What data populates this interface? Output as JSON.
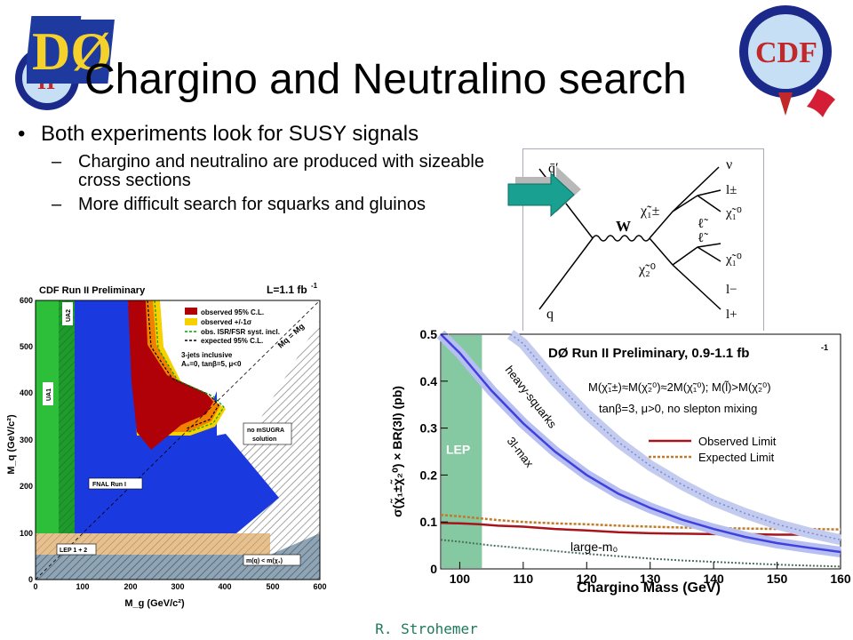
{
  "slide": {
    "title": "Chargino and Neutralino search",
    "bullets": {
      "main": "Both experiments look for SUSY signals",
      "sub1": "Chargino and neutralino are produced with sizeable cross sections",
      "sub2": "More difficult search for squarks and gluinos"
    },
    "footer": "R. Strohemer"
  },
  "logos": {
    "d0": "DØ",
    "cdf": "CDF"
  },
  "feynman": {
    "labels": [
      "q̄′",
      "q",
      "W",
      "χ̃₁±",
      "χ̃₂⁰",
      "ν",
      "l±",
      "ℓ̃",
      "χ̃₁⁰",
      "ℓ̃",
      "χ̃₁⁰",
      "l−",
      "l+"
    ]
  },
  "cdf_plot": {
    "header": "CDF Run II Preliminary",
    "lumi": "L=1.1 fb",
    "lumi_sup": "-1",
    "legend": [
      "observed 95% C.L.",
      "observed +/-1σ",
      "obs. ISR/FSR syst. incl.",
      "expected 95% C.L."
    ],
    "annot": {
      "jets": "3-jets inclusive",
      "params": "A₀=0, tanβ=5, μ<0",
      "diag": "Mq = Mg",
      "nomsugra1": "no mSUGRA",
      "nomsugra2": "solution",
      "fnal": "FNAL Run I",
      "lep": "LEP 1 + 2",
      "mq": "m(q) < m(χ₁)",
      "ua1": "UA1",
      "ua2": "UA2"
    },
    "xlabel": "M_g (GeV/c²)",
    "ylabel": "M_q (GeV/c²)",
    "xticks": [
      "0",
      "100",
      "200",
      "300",
      "400",
      "500",
      "600"
    ],
    "yticks": [
      "0",
      "100",
      "200",
      "300",
      "400",
      "500",
      "600"
    ]
  },
  "chart_data": {
    "type": "line",
    "title": "DØ Run II Preliminary, 0.9-1.1 fb",
    "title_sup": "-1",
    "condition1": "M(χ̃₁±)≈M(χ̃₂⁰)≈2M(χ̃₁⁰); M(l̃)>M(χ̃₂⁰)",
    "condition2": "tanβ=3, μ>0, no slepton mixing",
    "xlabel": "Chargino Mass (GeV)",
    "ylabel": "σ(χ̃₁±χ̃₂⁰) × BR(3l) (pb)",
    "xlim": [
      97,
      160
    ],
    "ylim": [
      0,
      0.5
    ],
    "xticks": [
      100,
      110,
      120,
      130,
      140,
      150,
      160
    ],
    "yticks": [
      0,
      0.1,
      0.2,
      0.3,
      0.4,
      0.5
    ],
    "lep_label": "LEP",
    "lep_x": 103.5,
    "curve_labels": [
      "heavy-squarks",
      "3l-max",
      "large-m₀"
    ],
    "legend": [
      "Observed Limit",
      "Expected Limit"
    ],
    "series": [
      {
        "name": "Observed Limit",
        "x": [
          97,
          100,
          103,
          106,
          110,
          115,
          120,
          125,
          130,
          135,
          140,
          145,
          150,
          155,
          160
        ],
        "y": [
          0.098,
          0.097,
          0.095,
          0.092,
          0.09,
          0.085,
          0.082,
          0.078,
          0.076,
          0.075,
          0.074,
          0.074,
          0.073,
          0.073,
          0.072
        ]
      },
      {
        "name": "Expected Limit",
        "x": [
          97,
          100,
          103,
          106,
          110,
          115,
          120,
          125,
          130,
          135,
          140,
          145,
          150,
          155,
          160
        ],
        "y": [
          0.115,
          0.112,
          0.108,
          0.104,
          0.1,
          0.097,
          0.095,
          0.092,
          0.09,
          0.088,
          0.087,
          0.086,
          0.085,
          0.085,
          0.084
        ]
      },
      {
        "name": "3l-max",
        "x": [
          97,
          100,
          105,
          110,
          115,
          120,
          125,
          130,
          135,
          140,
          145,
          150,
          155,
          160
        ],
        "y": [
          0.52,
          0.46,
          0.38,
          0.31,
          0.25,
          0.2,
          0.16,
          0.13,
          0.105,
          0.085,
          0.068,
          0.055,
          0.045,
          0.036
        ]
      },
      {
        "name": "heavy-squarks",
        "x": [
          108,
          110,
          115,
          120,
          125,
          130,
          135,
          140,
          145,
          150,
          155,
          160
        ],
        "y": [
          0.52,
          0.48,
          0.4,
          0.33,
          0.27,
          0.22,
          0.18,
          0.145,
          0.118,
          0.095,
          0.077,
          0.062
        ]
      },
      {
        "name": "large-m0",
        "x": [
          97,
          100,
          105,
          110,
          115,
          120,
          125,
          130,
          135,
          140,
          145,
          150,
          155,
          160
        ],
        "y": [
          0.062,
          0.058,
          0.05,
          0.044,
          0.038,
          0.032,
          0.027,
          0.022,
          0.018,
          0.015,
          0.012,
          0.009,
          0.007,
          0.005
        ]
      }
    ]
  }
}
